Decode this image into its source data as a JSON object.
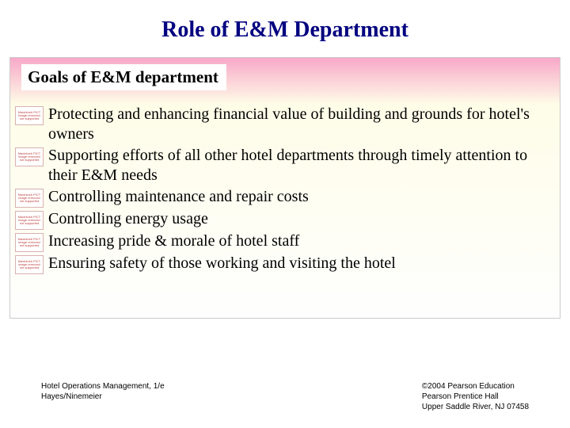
{
  "title": "Role of E&M Department",
  "subtitle": "Goals of E&M department",
  "bullet_placeholder": "Macintosh PICT image removed not supported",
  "items": [
    "Protecting and enhancing financial value of building and grounds for hotel's owners",
    "Supporting efforts of all other hotel departments through timely attention to their E&M needs",
    "Controlling maintenance and repair costs",
    "Controlling energy usage",
    "Increasing pride & morale of hotel staff",
    "Ensuring safety of those working and visiting the hotel"
  ],
  "footer": {
    "left_line1": "Hotel Operations Management, 1/e",
    "left_line2": "Hayes/Ninemeier",
    "right_line1": "©2004 Pearson Education",
    "right_line2": "Pearson Prentice Hall",
    "right_line3": "Upper Saddle River, NJ 07458"
  },
  "colors": {
    "title_color": "#000080",
    "gradient_top": "#f8a8c8",
    "gradient_mid": "#fefde8",
    "gradient_bottom": "#fefefe",
    "text_color": "#000000"
  }
}
